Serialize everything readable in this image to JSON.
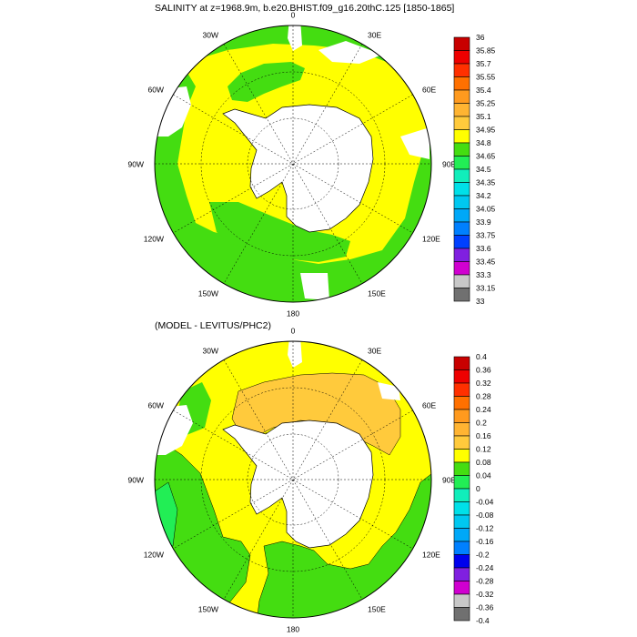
{
  "panels": [
    {
      "title": "SALINITY at z=1968.9m, b.e20.BHIST.f09_g16.20thC.125 [1850-1865]",
      "lon_labels": [
        "0",
        "30E",
        "60E",
        "90E",
        "120E",
        "150E",
        "180",
        "150W",
        "120W",
        "90W",
        "60W",
        "30W"
      ],
      "colorbar": {
        "levels": [
          "36",
          "35.85",
          "35.7",
          "35.55",
          "35.4",
          "35.25",
          "35.1",
          "34.95",
          "34.8",
          "34.65",
          "34.5",
          "34.35",
          "34.2",
          "34.05",
          "33.9",
          "33.75",
          "33.6",
          "33.45",
          "33.3",
          "33.15",
          "33"
        ],
        "colors": [
          "#c80000",
          "#ee0000",
          "#ff3000",
          "#ff7000",
          "#ff9a1e",
          "#ffb432",
          "#ffca3c",
          "#ffff00",
          "#44dd11",
          "#22ee55",
          "#11eebb",
          "#00e0e8",
          "#00c8f0",
          "#00a8f8",
          "#0080ff",
          "#0040ff",
          "#8020e0",
          "#d000d0",
          "#c8c8c8",
          "#707070"
        ]
      }
    },
    {
      "title": "(MODEL - LEVITUS/PHC2)",
      "lon_labels": [
        "0",
        "30E",
        "60E",
        "90E",
        "120E",
        "150E",
        "180",
        "150W",
        "120W",
        "90W",
        "60W",
        "30W"
      ],
      "colorbar": {
        "levels": [
          "0.4",
          "0.36",
          "0.32",
          "0.28",
          "0.24",
          "0.2",
          "0.16",
          "0.12",
          "0.08",
          "0.04",
          "0",
          "-0.04",
          "-0.08",
          "-0.12",
          "-0.16",
          "-0.2",
          "-0.24",
          "-0.28",
          "-0.32",
          "-0.36",
          "-0.4"
        ],
        "colors": [
          "#c80000",
          "#ee0000",
          "#ff3000",
          "#ff7000",
          "#ff9a1e",
          "#ffb432",
          "#ffca3c",
          "#ffff00",
          "#44dd11",
          "#22ee55",
          "#11eebb",
          "#00e0e8",
          "#00c8f0",
          "#00a8f8",
          "#0080ff",
          "#0000ee",
          "#8020e0",
          "#d000d0",
          "#c8c8c8",
          "#707070"
        ]
      }
    }
  ]
}
